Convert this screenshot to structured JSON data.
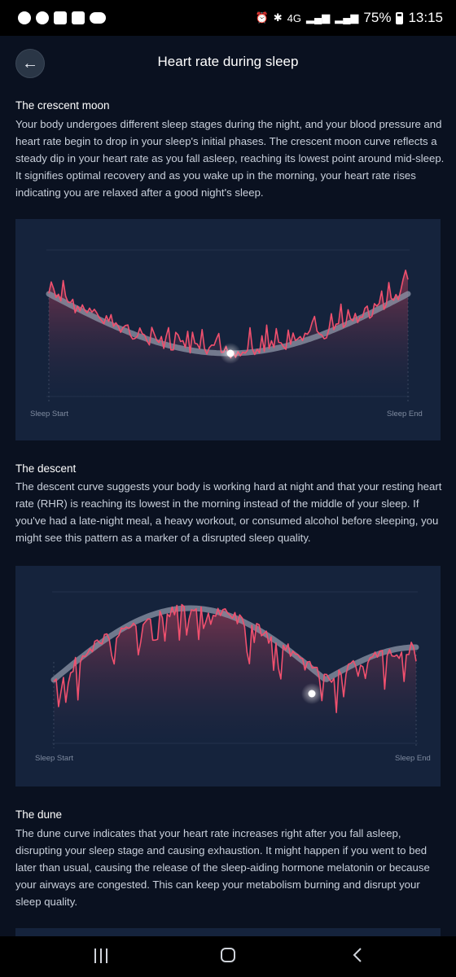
{
  "status_bar": {
    "time": "13:15",
    "battery": "75%",
    "network": "4G"
  },
  "header": {
    "back_icon": "←",
    "title": "Heart rate during sleep"
  },
  "sections": [
    {
      "title": "The crescent moon",
      "body": "Your body undergoes different sleep stages during the night, and your blood pressure and heart rate begin to drop in your sleep's initial phases. The crescent moon curve reflects a steady dip in your heart rate as you fall asleep, reaching its lowest point around mid-sleep. It signifies optimal recovery and as you wake up in the morning, your heart rate rises indicating you are relaxed after a good night's sleep."
    },
    {
      "title": "The descent",
      "body": "The descent curve suggests your body is working hard at night and that your resting heart rate (RHR) is reaching its lowest in the morning instead of the middle of your sleep. If you've had a late-night meal, a heavy workout, or consumed alcohol before sleeping, you might see this pattern as a marker of a disrupted sleep quality."
    },
    {
      "title": "The dune",
      "body": "The dune curve indicates that your heart rate increases right after you fall asleep, disrupting your sleep stage and causing exhaustion. It might happen if you went to bed later than usual, causing the release of the sleep-aiding hormone melatonin or because your airways are congested. This can keep your metabolism burning and disrupt your sleep quality."
    }
  ],
  "charts": [
    {
      "x_start_label": "Sleep Start",
      "x_end_label": "Sleep End"
    },
    {
      "x_start_label": "Sleep Start",
      "x_end_label": "Sleep End"
    }
  ],
  "colors": {
    "background": "#0a1120",
    "chart_background": "#15233c",
    "heart_rate_line": "#f0506e",
    "trend_curve": "#8e97a8"
  },
  "nav_bar": {
    "icons": [
      "recent-apps-icon",
      "home-icon",
      "back-icon"
    ]
  }
}
